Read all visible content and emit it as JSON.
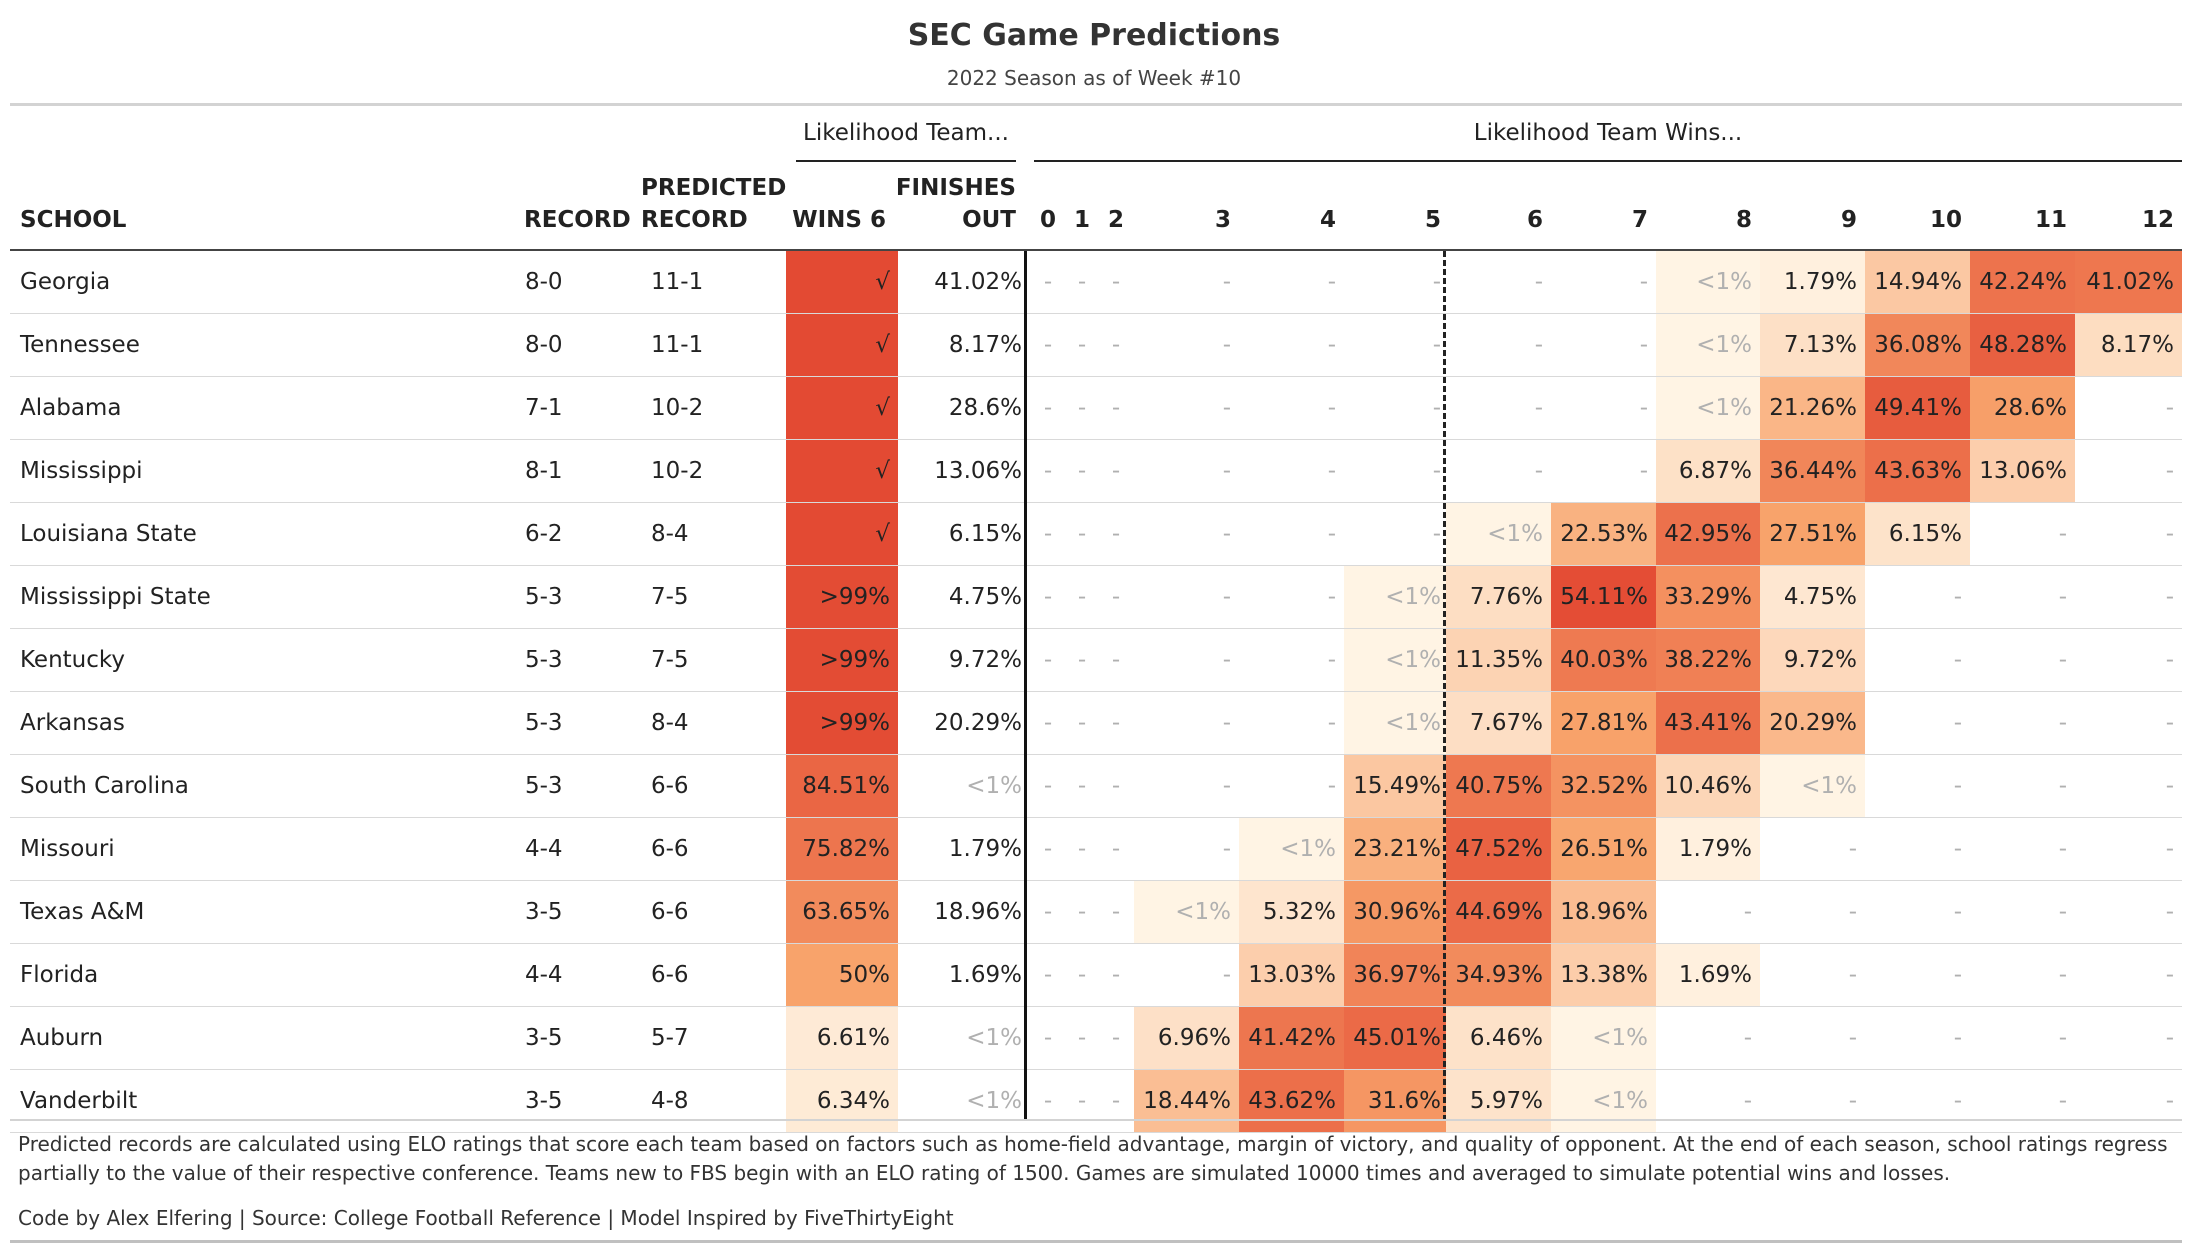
{
  "title": "SEC Game Predictions",
  "subtitle": "2022 Season as of Week #10",
  "spanners": {
    "team": "Likelihood Team...",
    "wins": "Likelihood Team Wins..."
  },
  "columns": {
    "school": "SCHOOL",
    "record": "RECORD",
    "predicted_1": "PREDICTED",
    "predicted_2": "RECORD",
    "wins6": "WINS 6",
    "finishes_1": "FINISHES",
    "finishes_2": "OUT",
    "wins": [
      "0",
      "1",
      "2",
      "3",
      "4",
      "5",
      "6",
      "7",
      "8",
      "9",
      "10",
      "11",
      "12"
    ]
  },
  "colors": {
    "heat_low": "#fff5e6",
    "heat_mid": "#f8a36b",
    "heat_high": "#e34a33",
    "muted_text": "#b0b0b0",
    "rule": "#d3d3d3"
  },
  "chart_data": {
    "type": "table",
    "rows": [
      {
        "school": "Georgia",
        "record": "8-0",
        "predicted": "11-1",
        "wins6": "√",
        "wins6_pct": 100,
        "finishes_out": "41.02%",
        "wins": [
          "-",
          "-",
          "-",
          "-",
          "-",
          "-",
          "-",
          "-",
          "<1%",
          "1.79%",
          "14.94%",
          "42.24%",
          "41.02%"
        ]
      },
      {
        "school": "Tennessee",
        "record": "8-0",
        "predicted": "11-1",
        "wins6": "√",
        "wins6_pct": 100,
        "finishes_out": "8.17%",
        "wins": [
          "-",
          "-",
          "-",
          "-",
          "-",
          "-",
          "-",
          "-",
          "<1%",
          "7.13%",
          "36.08%",
          "48.28%",
          "8.17%"
        ]
      },
      {
        "school": "Alabama",
        "record": "7-1",
        "predicted": "10-2",
        "wins6": "√",
        "wins6_pct": 100,
        "finishes_out": "28.6%",
        "wins": [
          "-",
          "-",
          "-",
          "-",
          "-",
          "-",
          "-",
          "-",
          "<1%",
          "21.26%",
          "49.41%",
          "28.6%",
          "-"
        ]
      },
      {
        "school": "Mississippi",
        "record": "8-1",
        "predicted": "10-2",
        "wins6": "√",
        "wins6_pct": 100,
        "finishes_out": "13.06%",
        "wins": [
          "-",
          "-",
          "-",
          "-",
          "-",
          "-",
          "-",
          "-",
          "6.87%",
          "36.44%",
          "43.63%",
          "13.06%",
          "-"
        ]
      },
      {
        "school": "Louisiana State",
        "record": "6-2",
        "predicted": "8-4",
        "wins6": "√",
        "wins6_pct": 100,
        "finishes_out": "6.15%",
        "wins": [
          "-",
          "-",
          "-",
          "-",
          "-",
          "-",
          "<1%",
          "22.53%",
          "42.95%",
          "27.51%",
          "6.15%",
          "-",
          "-"
        ]
      },
      {
        "school": "Mississippi State",
        "record": "5-3",
        "predicted": "7-5",
        "wins6": ">99%",
        "wins6_pct": 99,
        "finishes_out": "4.75%",
        "wins": [
          "-",
          "-",
          "-",
          "-",
          "-",
          "<1%",
          "7.76%",
          "54.11%",
          "33.29%",
          "4.75%",
          "-",
          "-",
          "-"
        ]
      },
      {
        "school": "Kentucky",
        "record": "5-3",
        "predicted": "7-5",
        "wins6": ">99%",
        "wins6_pct": 99,
        "finishes_out": "9.72%",
        "wins": [
          "-",
          "-",
          "-",
          "-",
          "-",
          "<1%",
          "11.35%",
          "40.03%",
          "38.22%",
          "9.72%",
          "-",
          "-",
          "-"
        ]
      },
      {
        "school": "Arkansas",
        "record": "5-3",
        "predicted": "8-4",
        "wins6": ">99%",
        "wins6_pct": 99,
        "finishes_out": "20.29%",
        "wins": [
          "-",
          "-",
          "-",
          "-",
          "-",
          "<1%",
          "7.67%",
          "27.81%",
          "43.41%",
          "20.29%",
          "-",
          "-",
          "-"
        ]
      },
      {
        "school": "South Carolina",
        "record": "5-3",
        "predicted": "6-6",
        "wins6": "84.51%",
        "wins6_pct": 84.51,
        "finishes_out": "<1%",
        "wins": [
          "-",
          "-",
          "-",
          "-",
          "-",
          "15.49%",
          "40.75%",
          "32.52%",
          "10.46%",
          "<1%",
          "-",
          "-",
          "-"
        ]
      },
      {
        "school": "Missouri",
        "record": "4-4",
        "predicted": "6-6",
        "wins6": "75.82%",
        "wins6_pct": 75.82,
        "finishes_out": "1.79%",
        "wins": [
          "-",
          "-",
          "-",
          "-",
          "<1%",
          "23.21%",
          "47.52%",
          "26.51%",
          "1.79%",
          "-",
          "-",
          "-",
          "-"
        ]
      },
      {
        "school": "Texas A&M",
        "record": "3-5",
        "predicted": "6-6",
        "wins6": "63.65%",
        "wins6_pct": 63.65,
        "finishes_out": "18.96%",
        "wins": [
          "-",
          "-",
          "-",
          "<1%",
          "5.32%",
          "30.96%",
          "44.69%",
          "18.96%",
          "-",
          "-",
          "-",
          "-",
          "-"
        ]
      },
      {
        "school": "Florida",
        "record": "4-4",
        "predicted": "6-6",
        "wins6": "50%",
        "wins6_pct": 50,
        "finishes_out": "1.69%",
        "wins": [
          "-",
          "-",
          "-",
          "-",
          "13.03%",
          "36.97%",
          "34.93%",
          "13.38%",
          "1.69%",
          "-",
          "-",
          "-",
          "-"
        ]
      },
      {
        "school": "Auburn",
        "record": "3-5",
        "predicted": "5-7",
        "wins6": "6.61%",
        "wins6_pct": 6.61,
        "finishes_out": "<1%",
        "wins": [
          "-",
          "-",
          "-",
          "6.96%",
          "41.42%",
          "45.01%",
          "6.46%",
          "<1%",
          "-",
          "-",
          "-",
          "-",
          "-"
        ]
      },
      {
        "school": "Vanderbilt",
        "record": "3-5",
        "predicted": "4-8",
        "wins6": "6.34%",
        "wins6_pct": 6.34,
        "finishes_out": "<1%",
        "wins": [
          "-",
          "-",
          "-",
          "18.44%",
          "43.62%",
          "31.6%",
          "5.97%",
          "<1%",
          "-",
          "-",
          "-",
          "-",
          "-"
        ]
      }
    ]
  },
  "footnote": "Predicted records are calculated using ELO ratings that score each team based on factors such as home-field advantage, margin of victory, and quality of opponent. At the end of each season, school ratings regress partially to the value of their respective conference. Teams new to FBS begin with an ELO rating of 1500. Games are simulated 10000 times and averaged to simulate potential wins and losses.",
  "credits": "Code by Alex Elfering | Source: College Football Reference | Model Inspired by FiveThirtyEight"
}
